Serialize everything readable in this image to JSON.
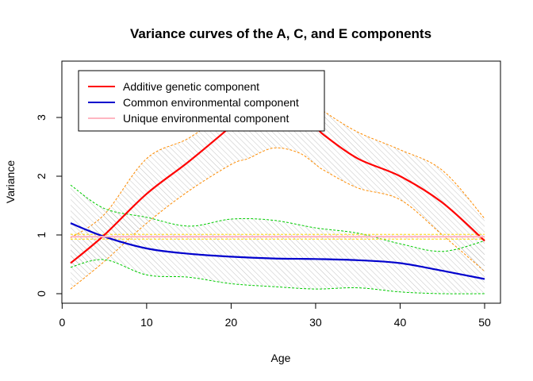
{
  "chart_data": {
    "type": "line",
    "title": "Variance curves of the A, C, and E components",
    "xlabel": "Age",
    "ylabel": "Variance",
    "xlim": [
      1,
      50
    ],
    "ylim": [
      0,
      3.8
    ],
    "xticks": [
      0,
      10,
      20,
      30,
      40,
      50
    ],
    "yticks": [
      0,
      1,
      2,
      3
    ],
    "legend_position": "top-left",
    "series": [
      {
        "name": "Additive genetic component",
        "color": "#ff0000",
        "x": [
          1,
          5,
          10,
          15,
          20,
          22,
          25,
          28,
          30,
          31,
          35,
          40,
          45,
          50
        ],
        "y": [
          0.52,
          1.0,
          1.7,
          2.25,
          2.85,
          3.1,
          3.2,
          3.15,
          2.85,
          2.7,
          2.3,
          2.0,
          1.55,
          0.9
        ],
        "band_color": "#ff8c00",
        "lower": [
          0.08,
          0.55,
          1.2,
          1.75,
          2.2,
          2.3,
          2.48,
          2.4,
          2.2,
          2.1,
          1.8,
          1.6,
          1.0,
          0.38
        ],
        "upper": [
          0.95,
          1.35,
          2.3,
          2.65,
          3.15,
          3.3,
          3.4,
          3.35,
          3.2,
          3.1,
          2.75,
          2.45,
          2.1,
          1.28
        ]
      },
      {
        "name": "Common environmental component",
        "color": "#0000cd",
        "x": [
          1,
          5,
          10,
          15,
          20,
          25,
          30,
          35,
          40,
          45,
          50
        ],
        "y": [
          1.2,
          0.97,
          0.77,
          0.68,
          0.63,
          0.6,
          0.59,
          0.57,
          0.52,
          0.39,
          0.25
        ],
        "band_color": "#00cc00",
        "lower": [
          0.45,
          0.58,
          0.32,
          0.28,
          0.17,
          0.12,
          0.08,
          0.1,
          0.03,
          0.0,
          0.0
        ],
        "upper": [
          1.85,
          1.45,
          1.3,
          1.15,
          1.27,
          1.25,
          1.12,
          1.03,
          0.85,
          0.72,
          0.9
        ]
      },
      {
        "name": "Unique environmental component",
        "color": "#ffb6c1",
        "x": [
          1,
          50
        ],
        "y": [
          0.97,
          0.97
        ],
        "band_color": "#ffd700",
        "lower": [
          0.93,
          0.93
        ],
        "upper": [
          1.01,
          1.01
        ]
      }
    ]
  }
}
